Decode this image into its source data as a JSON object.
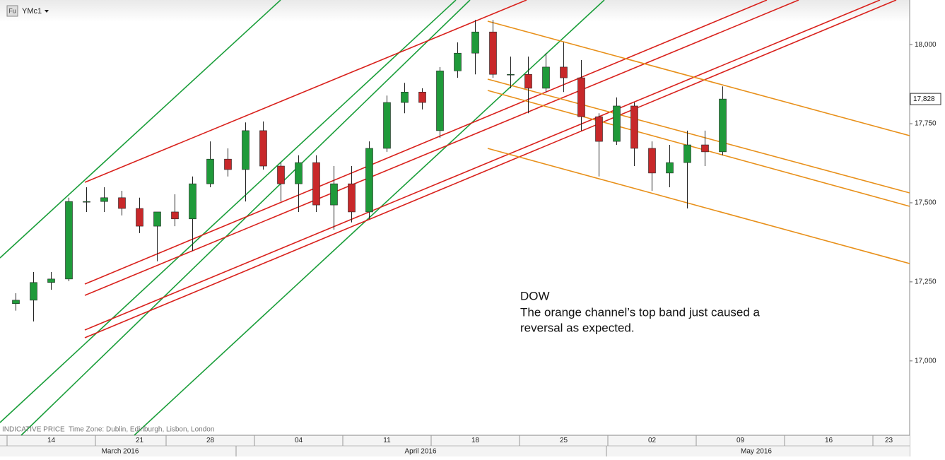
{
  "chart_data": {
    "type": "candlestick",
    "source_icon": "Fu",
    "symbol": "YMc1",
    "footer_note": "INDICATIVE PRICE",
    "timezone": "Time Zone: Dublin, Edinburgh, Lisbon, London",
    "annotation": [
      "DOW",
      "The orange channel’s top band just caused a",
      "reversal as expected."
    ],
    "up_color": "#1f9a3a",
    "down_color": "#c8282a",
    "x": [
      0,
      1,
      2,
      3,
      4,
      5,
      6,
      7,
      8,
      9,
      10,
      11,
      12,
      13,
      14,
      15,
      16,
      17,
      18,
      19,
      20,
      21,
      22,
      23,
      24,
      25,
      26,
      27,
      28,
      29,
      30,
      31,
      32,
      33,
      34,
      35,
      36,
      37,
      38,
      39,
      40
    ],
    "open": [
      17181,
      17192,
      17248,
      17259,
      17504,
      17504,
      17516,
      17482,
      17426,
      17471,
      17449,
      17560,
      17638,
      17605,
      17728,
      17616,
      17560,
      17627,
      17493,
      17560,
      17471,
      17672,
      17817,
      17850,
      17728,
      17917,
      17973,
      18040,
      17906,
      17906,
      17862,
      17929,
      17895,
      17772,
      17694,
      17806,
      17672,
      17594,
      17627,
      17683,
      17661
    ],
    "high": [
      17214,
      17281,
      17281,
      17516,
      17549,
      17549,
      17538,
      17516,
      17471,
      17527,
      17583,
      17694,
      17672,
      17754,
      17757,
      17627,
      17650,
      17650,
      17616,
      17616,
      17694,
      17839,
      17879,
      17862,
      17929,
      18007,
      18078,
      18078,
      17962,
      17962,
      17973,
      18007,
      17951,
      17783,
      17833,
      17817,
      17694,
      17683,
      17728,
      17728,
      17868
    ],
    "low": [
      17159,
      17125,
      17225,
      17252,
      17471,
      17471,
      17460,
      17404,
      17315,
      17426,
      17348,
      17549,
      17583,
      17504,
      17605,
      17504,
      17471,
      17471,
      17415,
      17438,
      17449,
      17661,
      17783,
      17795,
      17705,
      17895,
      17906,
      17895,
      17862,
      17783,
      17850,
      17850,
      17728,
      17583,
      17683,
      17616,
      17538,
      17549,
      17482,
      17616,
      17650
    ],
    "close": [
      17192,
      17248,
      17259,
      17504,
      17504,
      17516,
      17482,
      17426,
      17471,
      17449,
      17560,
      17638,
      17605,
      17728,
      17616,
      17560,
      17627,
      17493,
      17560,
      17471,
      17672,
      17817,
      17850,
      17817,
      17917,
      17973,
      18040,
      17906,
      17906,
      17862,
      17929,
      17895,
      17772,
      17694,
      17806,
      17672,
      17594,
      17627,
      17683,
      17661,
      17828
    ],
    "last_price": {
      "value": 17828,
      "label": "17,828"
    },
    "xlim": [
      -0.9,
      50.58
    ],
    "xticks": [
      {
        "value": 2,
        "label": "14"
      },
      {
        "value": 7,
        "label": "21"
      },
      {
        "value": 11,
        "label": "28"
      },
      {
        "value": 16,
        "label": "04"
      },
      {
        "value": 21,
        "label": "11"
      },
      {
        "value": 26,
        "label": "18"
      },
      {
        "value": 31,
        "label": "25"
      },
      {
        "value": 36,
        "label": "02"
      },
      {
        "value": 41,
        "label": "09"
      },
      {
        "value": 46,
        "label": "16"
      },
      {
        "value": 49.4,
        "label": "23"
      }
    ],
    "month_ticks": [
      {
        "value": 5.9,
        "label": "March 2016"
      },
      {
        "value": 22.9,
        "label": "April 2016"
      },
      {
        "value": 41.9,
        "label": "May 2016"
      }
    ],
    "ylim": [
      16765,
      18141
    ],
    "yticks": [
      {
        "value": 17000,
        "label": "17,000"
      },
      {
        "value": 17250,
        "label": "17,250"
      },
      {
        "value": 17500,
        "label": "17,500"
      },
      {
        "value": 17750,
        "label": "17,750"
      },
      {
        "value": 18000,
        "label": "18,000"
      }
    ]
  }
}
